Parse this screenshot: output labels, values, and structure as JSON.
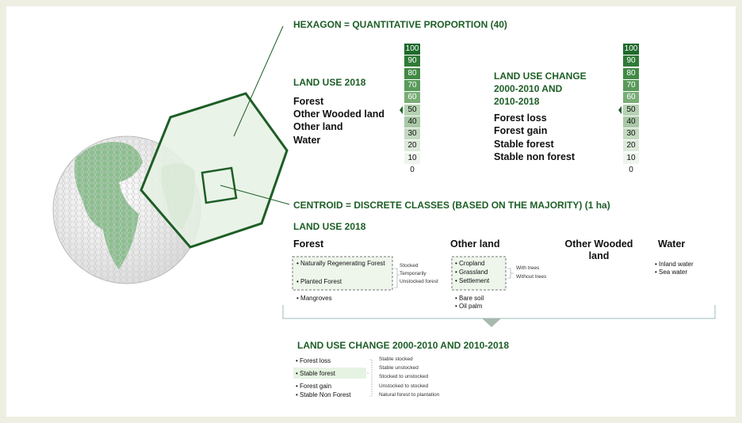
{
  "hexagon": {
    "title": "HEXAGON = QUANTITATIVE PROPORTION (40)",
    "land_use": {
      "title": "LAND USE 2018",
      "items": [
        "Forest",
        "Other Wooded land",
        "Other land",
        "Water"
      ]
    },
    "change": {
      "title_lines": [
        "LAND USE CHANGE",
        "2000-2010 AND",
        "2010-2018"
      ],
      "items": [
        "Forest loss",
        "Forest gain",
        "Stable forest",
        "Stable non forest"
      ]
    },
    "scale_left": [
      100,
      90,
      80,
      70,
      60,
      50,
      40,
      30,
      20,
      10,
      0
    ],
    "scale_right": [
      100,
      90,
      80,
      70,
      60,
      50,
      40,
      30,
      20,
      10,
      0
    ]
  },
  "centroid": {
    "title": "CENTROID = DISCRETE CLASSES (BASED ON THE MAJORITY) (1 ha)",
    "land_use_title": "LAND USE 2018",
    "forest": {
      "title": "Forest",
      "boxed": [
        "• Naturally Regenerating Forest",
        "• Planted Forest"
      ],
      "sub": [
        "Stocked",
        "Temporarily",
        "Unstocked forest"
      ],
      "other": [
        "• Mangroves"
      ]
    },
    "other_land": {
      "title": "Other land",
      "boxed": [
        "• Cropland",
        "• Grassland",
        "• Settlement"
      ],
      "sub": [
        "With trees",
        "Without trees"
      ],
      "other": [
        "• Bare soil",
        "• Oil palm"
      ]
    },
    "other_wooded": {
      "title": "Other Wooded land"
    },
    "water": {
      "title": "Water",
      "items": [
        "• Inland water",
        "• Sea water"
      ]
    }
  },
  "change": {
    "title": "LAND USE CHANGE 2000-2010 AND 2010-2018",
    "items": [
      "• Forest loss",
      "• Stable forest",
      "• Forest gain",
      "• Stable Non Forest"
    ],
    "sub": [
      "Stable stocked",
      "Stable unstocked",
      "Stocked to unstocked",
      "Unstocked to stocked",
      "Natural forest to plantation"
    ]
  }
}
